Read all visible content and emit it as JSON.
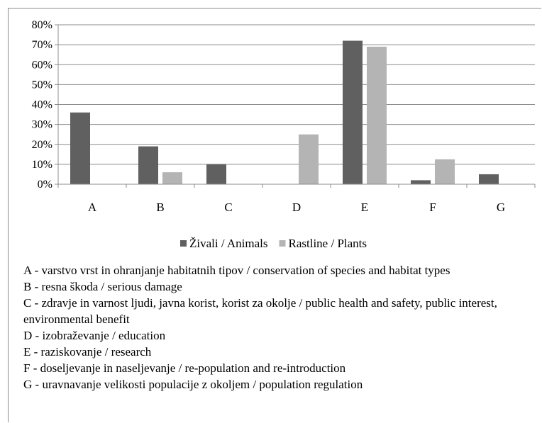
{
  "chart_data": {
    "type": "bar",
    "categories": [
      "A",
      "B",
      "C",
      "D",
      "E",
      "F",
      "G"
    ],
    "series": [
      {
        "name": "Živali / Animals",
        "color": "#606060",
        "values": [
          36,
          19,
          10,
          0,
          72,
          2,
          5
        ]
      },
      {
        "name": "Rastline / Plants",
        "color": "#b4b4b4",
        "values": [
          0,
          6,
          0,
          25,
          69,
          12.5,
          0
        ]
      }
    ],
    "yticks": [
      "0%",
      "10%",
      "20%",
      "30%",
      "40%",
      "50%",
      "60%",
      "70%",
      "80%"
    ],
    "ylim": [
      0,
      80
    ],
    "grid": true,
    "legend_position": "bottom"
  },
  "notes": [
    "A - varstvo vrst in ohranjanje habitatnih tipov / conservation of species and habitat types",
    "B - resna škoda / serious damage",
    "C - zdravje in varnost ljudi, javna korist, korist za okolje / public health and safety, public interest, environmental benefit",
    "D - izobraževanje / education",
    "E - raziskovanje / research",
    "F - doseljevanje in naseljevanje / re-population and re-introduction",
    "G - uravnavanje velikosti populacije z okoljem / population regulation"
  ]
}
